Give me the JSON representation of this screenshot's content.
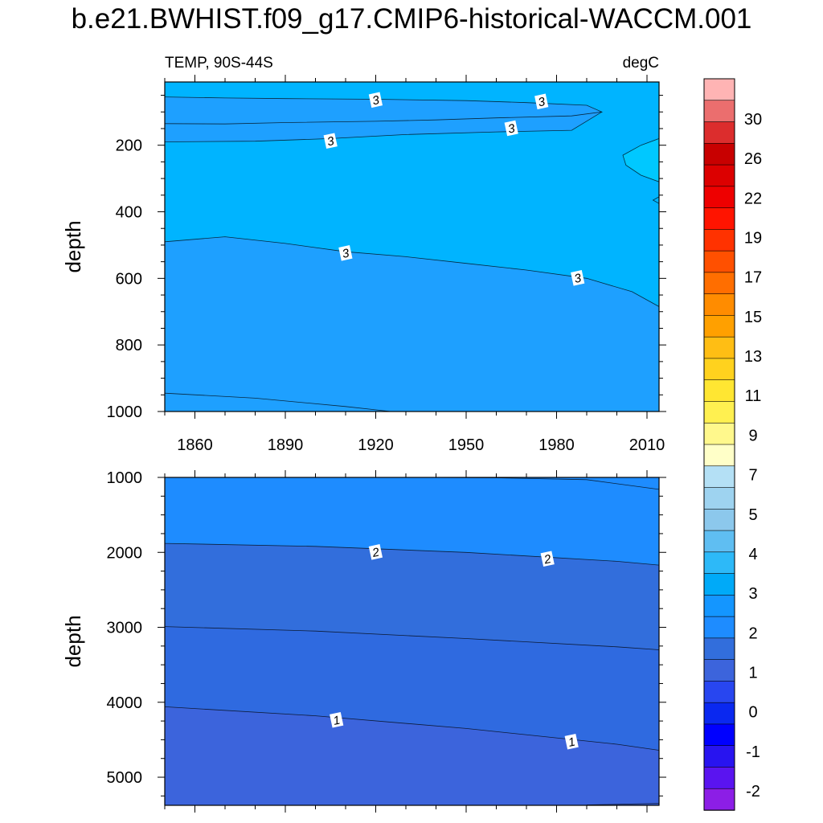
{
  "title": "b.e21.BWHIST.f09_g17.CMIP6-historical-WACCM.001",
  "chart_data": [
    {
      "type": "contour",
      "panel": "upper",
      "left_string": "TEMP, 90S-44S",
      "right_string": "degC",
      "ylabel": "depth",
      "xlabel": "",
      "x_ticks": [
        "1860",
        "1890",
        "1920",
        "1950",
        "1980",
        "2010"
      ],
      "y_ticks": [
        "200",
        "400",
        "600",
        "800",
        "1000"
      ],
      "xlim": [
        1850,
        2014
      ],
      "ylim": [
        1000,
        10
      ],
      "y_reversed": true,
      "grid": false,
      "fill_bands": [
        {
          "range": "2-2.5",
          "color": "#1e90ff"
        },
        {
          "range": "2.5-3",
          "color": "#1ea0ff"
        },
        {
          "range": "3-3.5",
          "color": "#00b4ff"
        },
        {
          "range": "3.5-4",
          "color": "#00c8ff"
        }
      ],
      "contours": [
        {
          "label": "3",
          "points": [
            [
              1850,
              55
            ],
            [
              1870,
              58
            ],
            [
              1890,
              60
            ],
            [
              1920,
              62
            ],
            [
              1950,
              66
            ],
            [
              1970,
              72
            ],
            [
              1990,
              80
            ],
            [
              1995,
              100
            ],
            [
              1985,
              112
            ],
            [
              1960,
              118
            ],
            [
              1940,
              124
            ],
            [
              1920,
              128
            ],
            [
              1890,
              132
            ],
            [
              1870,
              136
            ],
            [
              1850,
              135
            ]
          ]
        },
        {
          "label": "3",
          "points": [
            [
              1850,
              190
            ],
            [
              1880,
              188
            ],
            [
              1905,
              180
            ],
            [
              1930,
              168
            ],
            [
              1960,
              160
            ],
            [
              1985,
              155
            ],
            [
              1995,
              100
            ]
          ]
        },
        {
          "label": "3",
          "points": [
            [
              1850,
              490
            ],
            [
              1870,
              475
            ],
            [
              1890,
              495
            ],
            [
              1910,
              520
            ],
            [
              1930,
              535
            ],
            [
              1950,
              555
            ],
            [
              1970,
              575
            ],
            [
              1990,
              600
            ],
            [
              2005,
              640
            ],
            [
              2014,
              685
            ]
          ]
        },
        {
          "label": "",
          "points": [
            [
              1850,
              945
            ],
            [
              1880,
              960
            ],
            [
              1910,
              985
            ],
            [
              1925,
              1000
            ]
          ]
        },
        {
          "label": "",
          "points": [
            [
              2014,
              180
            ],
            [
              2008,
              200
            ],
            [
              2002,
              230
            ],
            [
              2003,
              260
            ],
            [
              2008,
              290
            ],
            [
              2014,
              310
            ]
          ]
        },
        {
          "label": "",
          "points": [
            [
              2014,
              355
            ],
            [
              2012,
              365
            ],
            [
              2014,
              375
            ]
          ]
        }
      ],
      "contour_labels": [
        {
          "text": "3",
          "x": 1920,
          "y": 65
        },
        {
          "text": "3",
          "x": 1975,
          "y": 70
        },
        {
          "text": "3",
          "x": 1905,
          "y": 188
        },
        {
          "text": "3",
          "x": 1965,
          "y": 150
        },
        {
          "text": "3",
          "x": 1910,
          "y": 525
        },
        {
          "text": "3",
          "x": 1987,
          "y": 600
        }
      ]
    },
    {
      "type": "contour",
      "panel": "lower",
      "left_string": "",
      "right_string": "",
      "ylabel": "depth",
      "xlabel": "",
      "x_ticks": [],
      "y_ticks": [
        "1000",
        "2000",
        "3000",
        "4000",
        "5000"
      ],
      "xlim": [
        1850,
        2014
      ],
      "ylim": [
        5375,
        1000
      ],
      "y_reversed": true,
      "grid": false,
      "fill_bands": [
        {
          "range": "1-1.5",
          "color": "#3c64dc"
        },
        {
          "range": "1.5-2",
          "color": "#326edc"
        },
        {
          "range": "2-2.5",
          "color": "#1e8cff"
        }
      ],
      "contours": [
        {
          "label": "",
          "points": [
            [
              1935,
              1000
            ],
            [
              1960,
              1005
            ],
            [
              1990,
              1030
            ],
            [
              2014,
              1160
            ]
          ]
        },
        {
          "label": "2",
          "points": [
            [
              1850,
              1880
            ],
            [
              1900,
              1920
            ],
            [
              1950,
              2000
            ],
            [
              2000,
              2120
            ],
            [
              2014,
              2170
            ]
          ]
        },
        {
          "label": "",
          "points": [
            [
              1850,
              2990
            ],
            [
              1900,
              3050
            ],
            [
              1950,
              3150
            ],
            [
              2000,
              3260
            ],
            [
              2014,
              3300
            ]
          ]
        },
        {
          "label": "1",
          "points": [
            [
              1850,
              4060
            ],
            [
              1900,
              4180
            ],
            [
              1950,
              4350
            ],
            [
              2000,
              4560
            ],
            [
              2014,
              4640
            ]
          ]
        },
        {
          "label": "",
          "points": [
            [
              1990,
              5370
            ],
            [
              2014,
              5350
            ]
          ]
        }
      ],
      "contour_labels": [
        {
          "text": "2",
          "x": 1920,
          "y": 2000
        },
        {
          "text": "2",
          "x": 1977,
          "y": 2090
        },
        {
          "text": "1",
          "x": 1907,
          "y": 4240
        },
        {
          "text": "1",
          "x": 1985,
          "y": 4530
        }
      ]
    }
  ],
  "colorbar": {
    "levels": [
      "30",
      "26",
      "22",
      "19",
      "17",
      "15",
      "13",
      "11",
      "9",
      "7",
      "5",
      "4",
      "3",
      "2",
      "1",
      "0",
      "-1",
      "-2"
    ],
    "colors": [
      "#ffb4b4",
      "#eb6e6e",
      "#dc2d2d",
      "#c80000",
      "#dc0000",
      "#ee0000",
      "#ff1400",
      "#ff3200",
      "#ff5000",
      "#ff6e00",
      "#ff8c00",
      "#ffa000",
      "#ffbe14",
      "#ffd21e",
      "#ffe632",
      "#fff050",
      "#fff88c",
      "#ffffc8",
      "#b4e0f5",
      "#9ed3f0",
      "#8cc8ec",
      "#5fbef2",
      "#2db9f8",
      "#00aaf8",
      "#1496ff",
      "#1e8cff",
      "#326edc",
      "#3c64dc",
      "#2846f0",
      "#0a28f0",
      "#0000ff",
      "#2814f0",
      "#5a14f0",
      "#8c1ee6"
    ]
  }
}
